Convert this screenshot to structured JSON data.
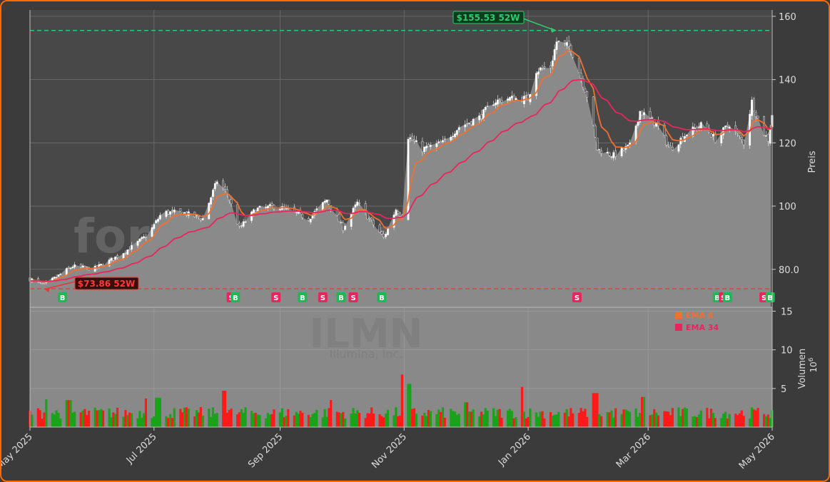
{
  "chart_data": {
    "type": "candlestick",
    "watermark": {
      "brand": "forexsignale.trade",
      "ticker": "ILMN",
      "company": "Illumina, Inc."
    },
    "price_axis": {
      "label": "Preis",
      "ticks": [
        "160",
        "140",
        "120",
        "100",
        "80.0"
      ],
      "tick_values": [
        160,
        140,
        120,
        100,
        80
      ],
      "ylim": [
        68,
        162
      ]
    },
    "volume_axis": {
      "label": "Volumen",
      "unit_base": "10",
      "unit_exp": "6",
      "ticks": [
        "15",
        "10",
        "5"
      ],
      "tick_values": [
        15,
        10,
        5
      ],
      "ylim": [
        0,
        15.5
      ]
    },
    "x_axis": {
      "ticks": [
        {
          "label": "May 2025",
          "date": "2025-05-01"
        },
        {
          "label": "Jul 2025",
          "date": "2025-07-01"
        },
        {
          "label": "Sep 2025",
          "date": "2025-09-01"
        },
        {
          "label": "Nov 2025",
          "date": "2025-11-01"
        },
        {
          "label": "Jan 2026",
          "date": "2026-01-01"
        },
        {
          "label": "Mar 2026",
          "date": "2026-03-01"
        },
        {
          "label": "May 2026",
          "date": "2026-05-01"
        }
      ],
      "xlim": [
        "2025-05-01",
        "2026-05-01"
      ]
    },
    "high_52w": {
      "label": "$155.53 52W",
      "value": 155.53,
      "date": "2026-01-15"
    },
    "low_52w": {
      "label": "$73.86 52W",
      "value": 73.86,
      "date": "2025-05-08"
    },
    "legend": [
      {
        "label": "EMA 8",
        "color": "#f07030"
      },
      {
        "label": "EMA 34",
        "color": "#e8265e"
      }
    ],
    "close_anchors": [
      [
        "2025-05-01",
        77
      ],
      [
        "2025-05-08",
        75
      ],
      [
        "2025-05-15",
        78
      ],
      [
        "2025-05-22",
        81
      ],
      [
        "2025-06-01",
        80
      ],
      [
        "2025-06-10",
        83
      ],
      [
        "2025-06-20",
        87
      ],
      [
        "2025-06-28",
        91
      ],
      [
        "2025-07-05",
        98
      ],
      [
        "2025-07-15",
        98
      ],
      [
        "2025-07-25",
        96
      ],
      [
        "2025-08-01",
        108
      ],
      [
        "2025-08-06",
        104
      ],
      [
        "2025-08-12",
        93
      ],
      [
        "2025-08-20",
        99
      ],
      [
        "2025-08-30",
        100
      ],
      [
        "2025-09-08",
        98
      ],
      [
        "2025-09-15",
        96
      ],
      [
        "2025-09-24",
        102
      ],
      [
        "2025-10-02",
        93
      ],
      [
        "2025-10-09",
        101
      ],
      [
        "2025-10-16",
        95
      ],
      [
        "2025-10-22",
        90
      ],
      [
        "2025-10-28",
        99
      ],
      [
        "2025-11-01",
        96
      ],
      [
        "2025-11-03",
        122
      ],
      [
        "2025-11-10",
        118
      ],
      [
        "2025-11-20",
        120
      ],
      [
        "2025-11-28",
        125
      ],
      [
        "2025-12-08",
        128
      ],
      [
        "2025-12-15",
        133
      ],
      [
        "2025-12-22",
        134
      ],
      [
        "2026-01-01",
        134
      ],
      [
        "2026-01-05",
        143
      ],
      [
        "2026-01-12",
        144
      ],
      [
        "2026-01-15",
        152
      ],
      [
        "2026-01-22",
        150
      ],
      [
        "2026-01-30",
        135
      ],
      [
        "2026-02-04",
        118
      ],
      [
        "2026-02-12",
        116
      ],
      [
        "2026-02-20",
        119
      ],
      [
        "2026-02-25",
        130
      ],
      [
        "2026-03-05",
        126
      ],
      [
        "2026-03-12",
        118
      ],
      [
        "2026-03-20",
        123
      ],
      [
        "2026-03-28",
        126
      ],
      [
        "2026-04-03",
        121
      ],
      [
        "2026-04-10",
        126
      ],
      [
        "2026-04-17",
        120
      ],
      [
        "2026-04-21",
        133
      ],
      [
        "2026-04-26",
        124
      ],
      [
        "2026-04-29",
        121
      ],
      [
        "2026-05-01",
        129
      ]
    ],
    "volume_spikes": [
      [
        "2025-05-10",
        3.6
      ],
      [
        "2025-05-20",
        3.5
      ],
      [
        "2025-06-28",
        3.7
      ],
      [
        "2025-07-03",
        3.8
      ],
      [
        "2025-08-04",
        4.7
      ],
      [
        "2025-09-27",
        3.5
      ],
      [
        "2025-11-01",
        6.8
      ],
      [
        "2025-11-03",
        5.6
      ],
      [
        "2025-12-01",
        3.2
      ],
      [
        "2025-12-28",
        5.2
      ],
      [
        "2026-02-03",
        4.4
      ],
      [
        "2026-02-27",
        3.9
      ]
    ],
    "signals": [
      {
        "type": "B",
        "date": "2025-05-17"
      },
      {
        "type": "S",
        "date": "2025-08-08"
      },
      {
        "type": "B",
        "date": "2025-08-10"
      },
      {
        "type": "S",
        "date": "2025-08-30"
      },
      {
        "type": "B",
        "date": "2025-09-12"
      },
      {
        "type": "S",
        "date": "2025-09-22"
      },
      {
        "type": "B",
        "date": "2025-10-01"
      },
      {
        "type": "S",
        "date": "2025-10-07"
      },
      {
        "type": "B",
        "date": "2025-10-21"
      },
      {
        "type": "S",
        "date": "2026-01-25"
      },
      {
        "type": "B",
        "date": "2026-04-04"
      },
      {
        "type": "S",
        "date": "2026-04-07"
      },
      {
        "type": "B",
        "date": "2026-04-09"
      },
      {
        "type": "S",
        "date": "2026-04-27"
      },
      {
        "type": "B",
        "date": "2026-04-30"
      }
    ],
    "colors": {
      "background": "#3b3b3b",
      "plot_bg": "#898989",
      "area": "#8a8a8a",
      "grid": "#6e6e6e",
      "up": "#1aa21a",
      "down": "#ff1a1a",
      "buy": "#1db954",
      "sell": "#e8265e",
      "high_line": "#2ecc71",
      "low_line": "#e53935",
      "frame": "#ff6a00"
    }
  }
}
